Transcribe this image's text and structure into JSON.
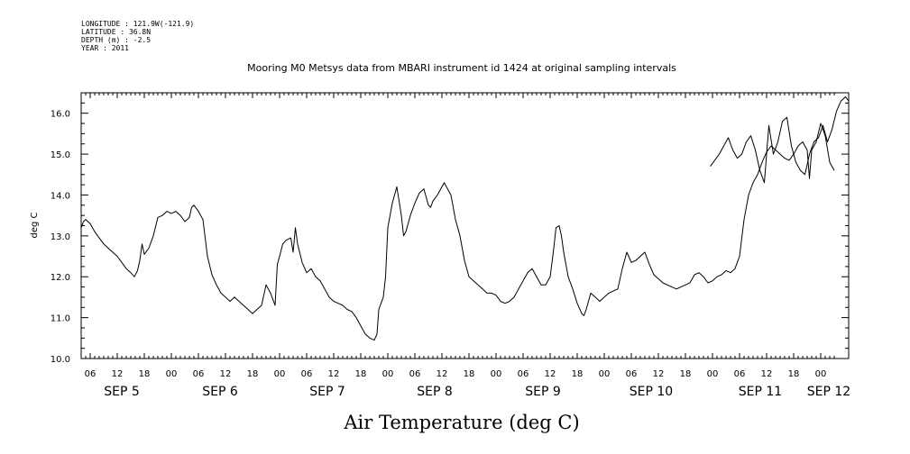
{
  "meta": {
    "longitude": "LONGITUDE : 121.9W(-121.9)",
    "latitude": "LATITUDE : 36.8N",
    "depth": "DEPTH (m) : -2.5",
    "year": "YEAR : 2011"
  },
  "chart_data": {
    "type": "line",
    "title": "Mooring M0 Metsys data from MBARI instrument id 1424 at original sampling intervals",
    "xlabel": "Air Temperature (deg C)",
    "ylabel": "deg C",
    "ylim": [
      10.0,
      16.5
    ],
    "yticks": [
      "10.0",
      "11.0",
      "12.0",
      "13.0",
      "14.0",
      "15.0",
      "16.0"
    ],
    "xlim_hours": [
      3.5,
      171
    ],
    "hour_tick_labels": [
      "06",
      "12",
      "18",
      "00",
      "06",
      "12",
      "18",
      "00",
      "06",
      "12",
      "18",
      "00",
      "06",
      "12",
      "18",
      "00",
      "06",
      "12",
      "18",
      "00",
      "06",
      "12",
      "18",
      "00",
      "06",
      "12",
      "18",
      "00"
    ],
    "day_labels": [
      "SEP  5",
      "SEP  6",
      "SEP  7",
      "SEP  8",
      "SEP  9",
      "SEP 10",
      "SEP 11",
      "SEP 12"
    ],
    "grid": false,
    "series": [
      {
        "points": [
          [
            4,
            13.2
          ],
          [
            4.5,
            13.35
          ],
          [
            5,
            13.4
          ],
          [
            6,
            13.3
          ],
          [
            7,
            13.1
          ],
          [
            8,
            12.95
          ],
          [
            9,
            12.8
          ],
          [
            10,
            12.7
          ],
          [
            11,
            12.6
          ],
          [
            12,
            12.5
          ],
          [
            13,
            12.35
          ],
          [
            14,
            12.2
          ],
          [
            15,
            12.1
          ],
          [
            15.8,
            12.0
          ],
          [
            16.5,
            12.15
          ],
          [
            17,
            12.4
          ],
          [
            17.5,
            12.8
          ],
          [
            18,
            12.55
          ],
          [
            19,
            12.7
          ],
          [
            20,
            13.0
          ],
          [
            21,
            13.45
          ],
          [
            22,
            13.5
          ],
          [
            23,
            13.6
          ],
          [
            24,
            13.55
          ],
          [
            25,
            13.6
          ],
          [
            26,
            13.5
          ],
          [
            27,
            13.35
          ],
          [
            28,
            13.45
          ],
          [
            28.5,
            13.7
          ],
          [
            29,
            13.75
          ],
          [
            30,
            13.6
          ],
          [
            31,
            13.4
          ],
          [
            32,
            12.5
          ],
          [
            33,
            12.05
          ],
          [
            34,
            11.8
          ],
          [
            35,
            11.6
          ],
          [
            36,
            11.5
          ],
          [
            37,
            11.4
          ],
          [
            38,
            11.5
          ],
          [
            39,
            11.4
          ],
          [
            40,
            11.3
          ],
          [
            41,
            11.2
          ],
          [
            42,
            11.1
          ],
          [
            43,
            11.2
          ],
          [
            44,
            11.3
          ],
          [
            45,
            11.8
          ],
          [
            46,
            11.6
          ],
          [
            47,
            11.3
          ],
          [
            47.5,
            12.3
          ],
          [
            48,
            12.5
          ],
          [
            48.7,
            12.8
          ],
          [
            49.5,
            12.9
          ],
          [
            50.5,
            12.95
          ],
          [
            51,
            12.6
          ],
          [
            51.5,
            13.2
          ],
          [
            52,
            12.8
          ],
          [
            53,
            12.35
          ],
          [
            54,
            12.1
          ],
          [
            55,
            12.2
          ],
          [
            56,
            12.0
          ],
          [
            57,
            11.9
          ],
          [
            58,
            11.7
          ],
          [
            59,
            11.5
          ],
          [
            60,
            11.4
          ],
          [
            61,
            11.35
          ],
          [
            62,
            11.3
          ],
          [
            63,
            11.2
          ],
          [
            64,
            11.15
          ],
          [
            65,
            11.0
          ],
          [
            66,
            10.8
          ],
          [
            67,
            10.6
          ],
          [
            68,
            10.5
          ],
          [
            69,
            10.45
          ],
          [
            69.6,
            10.6
          ],
          [
            70,
            11.2
          ],
          [
            71,
            11.5
          ],
          [
            71.5,
            12.0
          ],
          [
            72,
            13.2
          ],
          [
            73,
            13.8
          ],
          [
            74,
            14.2
          ],
          [
            75,
            13.5
          ],
          [
            75.5,
            13.0
          ],
          [
            76,
            13.1
          ],
          [
            77,
            13.5
          ],
          [
            78,
            13.8
          ],
          [
            79,
            14.05
          ],
          [
            80,
            14.15
          ],
          [
            81,
            13.75
          ],
          [
            81.5,
            13.7
          ],
          [
            82,
            13.85
          ],
          [
            83,
            14.0
          ],
          [
            84,
            14.2
          ],
          [
            84.5,
            14.3
          ],
          [
            85,
            14.2
          ],
          [
            86,
            14.0
          ],
          [
            87,
            13.4
          ],
          [
            88,
            13.0
          ],
          [
            89,
            12.4
          ],
          [
            90,
            12.0
          ],
          [
            91,
            11.9
          ],
          [
            92,
            11.8
          ],
          [
            93,
            11.7
          ],
          [
            94,
            11.6
          ],
          [
            95,
            11.6
          ],
          [
            96,
            11.55
          ],
          [
            97,
            11.4
          ],
          [
            98,
            11.35
          ],
          [
            99,
            11.4
          ],
          [
            100,
            11.5
          ],
          [
            101,
            11.7
          ],
          [
            102,
            11.9
          ],
          [
            103,
            12.1
          ],
          [
            104,
            12.2
          ],
          [
            105,
            12.0
          ],
          [
            106,
            11.8
          ],
          [
            107,
            11.8
          ],
          [
            108,
            12.0
          ],
          [
            108.7,
            12.6
          ],
          [
            109.3,
            13.2
          ],
          [
            110,
            13.25
          ],
          [
            110.5,
            13.0
          ],
          [
            111,
            12.6
          ],
          [
            112,
            12.0
          ],
          [
            113,
            11.7
          ],
          [
            114,
            11.35
          ],
          [
            115,
            11.1
          ],
          [
            115.5,
            11.05
          ],
          [
            116,
            11.2
          ],
          [
            117,
            11.6
          ],
          [
            118,
            11.5
          ],
          [
            119,
            11.4
          ],
          [
            120,
            11.5
          ],
          [
            121,
            11.6
          ],
          [
            122,
            11.65
          ],
          [
            123,
            11.7
          ],
          [
            124,
            12.2
          ],
          [
            125,
            12.6
          ],
          [
            126,
            12.35
          ],
          [
            127,
            12.4
          ],
          [
            128,
            12.5
          ],
          [
            129,
            12.6
          ],
          [
            130,
            12.3
          ],
          [
            131,
            12.05
          ],
          [
            132,
            11.95
          ],
          [
            133,
            11.85
          ],
          [
            134,
            11.8
          ],
          [
            135,
            11.75
          ],
          [
            136,
            11.7
          ],
          [
            137,
            11.75
          ],
          [
            138,
            11.8
          ],
          [
            139,
            11.85
          ],
          [
            140,
            12.05
          ],
          [
            141,
            12.1
          ],
          [
            142,
            12.0
          ],
          [
            143,
            11.85
          ],
          [
            144,
            11.9
          ],
          [
            145,
            12.0
          ],
          [
            146,
            12.05
          ],
          [
            147,
            12.15
          ],
          [
            148,
            12.1
          ],
          [
            149,
            12.2
          ],
          [
            150,
            12.5
          ],
          [
            151,
            13.4
          ],
          [
            152,
            14.0
          ],
          [
            153,
            14.3
          ],
          [
            154,
            14.5
          ],
          [
            155,
            14.8
          ],
          [
            156,
            15.05
          ],
          [
            157,
            15.2
          ],
          [
            158,
            15.1
          ],
          [
            159,
            15.0
          ],
          [
            160,
            14.9
          ],
          [
            161,
            14.85
          ],
          [
            162,
            15.0
          ],
          [
            163,
            15.2
          ],
          [
            164,
            15.3
          ],
          [
            165,
            15.1
          ],
          [
            165.5,
            14.4
          ],
          [
            166,
            15.1
          ],
          [
            167,
            15.3
          ],
          [
            168,
            15.75
          ],
          [
            169,
            15.45
          ],
          [
            170,
            14.8
          ],
          [
            171,
            14.6
          ]
        ]
      },
      {
        "points": [
          [
            143.5,
            14.7
          ],
          [
            144.5,
            14.85
          ],
          [
            145.5,
            15.0
          ],
          [
            146.5,
            15.2
          ],
          [
            147.5,
            15.4
          ],
          [
            148.5,
            15.1
          ],
          [
            149.5,
            14.9
          ],
          [
            150.5,
            15.0
          ],
          [
            151.5,
            15.3
          ],
          [
            152.5,
            15.45
          ],
          [
            153.5,
            15.1
          ],
          [
            154.5,
            14.6
          ],
          [
            155.5,
            14.3
          ],
          [
            156.5,
            15.7
          ],
          [
            157.5,
            15.0
          ],
          [
            158.5,
            15.3
          ],
          [
            159.5,
            15.8
          ],
          [
            160.5,
            15.9
          ],
          [
            161.5,
            15.2
          ],
          [
            162.5,
            14.8
          ],
          [
            163.5,
            14.6
          ],
          [
            164.5,
            14.5
          ],
          [
            165.5,
            15.0
          ],
          [
            166.5,
            15.3
          ],
          [
            167.5,
            15.4
          ],
          [
            168.5,
            15.7
          ],
          [
            169.5,
            15.3
          ],
          [
            170.5,
            15.6
          ],
          [
            171.5,
            16.05
          ],
          [
            172.5,
            16.3
          ],
          [
            173.5,
            16.4
          ],
          [
            174.5,
            16.3
          ],
          [
            175.5,
            16.2
          ],
          [
            176.5,
            15.9
          ],
          [
            177.5,
            15.7
          ],
          [
            178.5,
            15.65
          ]
        ]
      }
    ]
  }
}
